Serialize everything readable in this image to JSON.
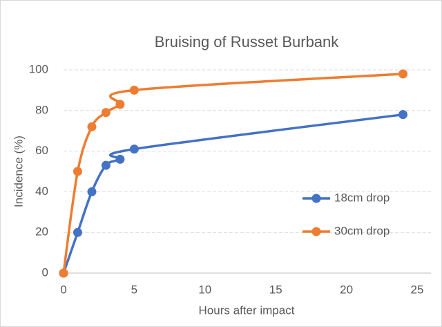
{
  "chart_data": {
    "type": "line",
    "title": "Bruising of Russet Burbank",
    "x_label": "Hours after impact",
    "y_label": "Incidence (%)",
    "x": [
      0,
      1,
      2,
      3,
      4,
      5,
      24
    ],
    "series": [
      {
        "name": "18cm drop",
        "color": "#4472c4",
        "values": [
          0,
          20,
          40,
          53,
          56,
          61,
          78
        ]
      },
      {
        "name": "30cm drop",
        "color": "#ed7d31",
        "values": [
          0,
          50,
          72,
          79,
          83,
          90,
          98
        ]
      }
    ],
    "xlim": [
      0,
      25
    ],
    "xticks": [
      0,
      5,
      10,
      15,
      20,
      25
    ],
    "ylim": [
      0,
      100
    ],
    "yticks": [
      0,
      20,
      40,
      60,
      80,
      100
    ],
    "grid": true,
    "smooth": true,
    "legend": "right"
  }
}
